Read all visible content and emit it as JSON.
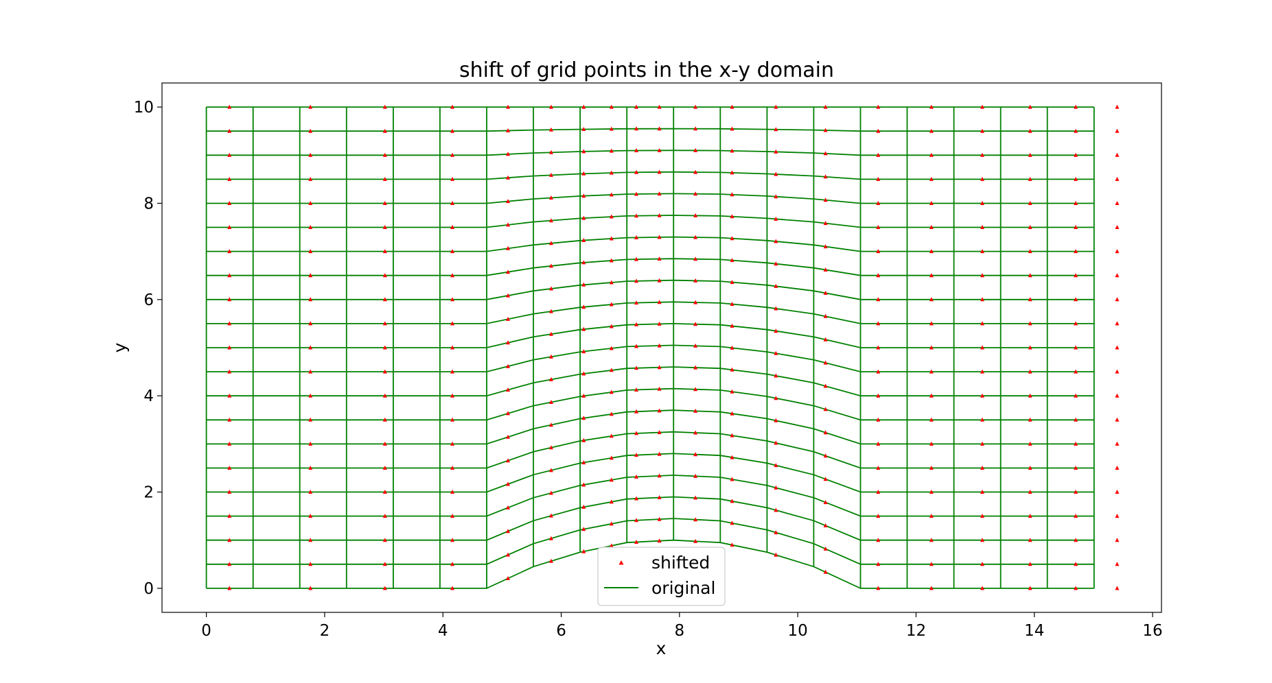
{
  "chart_data": {
    "type": "scatter",
    "title": "shift of grid points in the x-y domain",
    "xlabel": "x",
    "ylabel": "y",
    "xlim": [
      -0.75,
      16.15
    ],
    "ylim": [
      -0.5,
      10.5
    ],
    "xticks": [
      0,
      2,
      4,
      6,
      8,
      10,
      12,
      14,
      16
    ],
    "yticks": [
      0,
      2,
      4,
      6,
      8,
      10
    ],
    "grid": false,
    "legend": {
      "position": "lower center",
      "entries": [
        "shifted",
        "original"
      ]
    },
    "colors": {
      "shifted": "#ff0000",
      "original": "#008000"
    },
    "grid_definition": {
      "x_nodes": [
        0,
        0.79,
        1.58,
        2.37,
        3.16,
        3.95,
        4.74,
        5.53,
        6.32,
        7.11,
        7.9,
        8.69,
        9.48,
        10.27,
        11.06,
        11.85,
        12.64,
        13.43,
        14.22,
        15.01
      ],
      "bump_height": [
        0,
        0,
        0,
        0,
        0,
        0,
        0,
        0.45,
        0.75,
        0.95,
        1.0,
        0.95,
        0.75,
        0.45,
        0,
        0,
        0,
        0,
        0,
        0
      ],
      "y_levels": 20,
      "y_max": 10
    },
    "series": [
      {
        "name": "shifted",
        "marker": "triangle",
        "x": [
          0.39,
          1.76,
          3.02,
          4.16,
          5.1,
          5.83,
          6.38,
          6.85,
          7.27,
          7.66,
          8.27,
          8.89,
          9.63,
          10.47,
          11.36,
          12.26,
          13.12,
          13.93,
          14.7,
          15.4
        ]
      },
      {
        "name": "original",
        "style": "line"
      }
    ]
  }
}
